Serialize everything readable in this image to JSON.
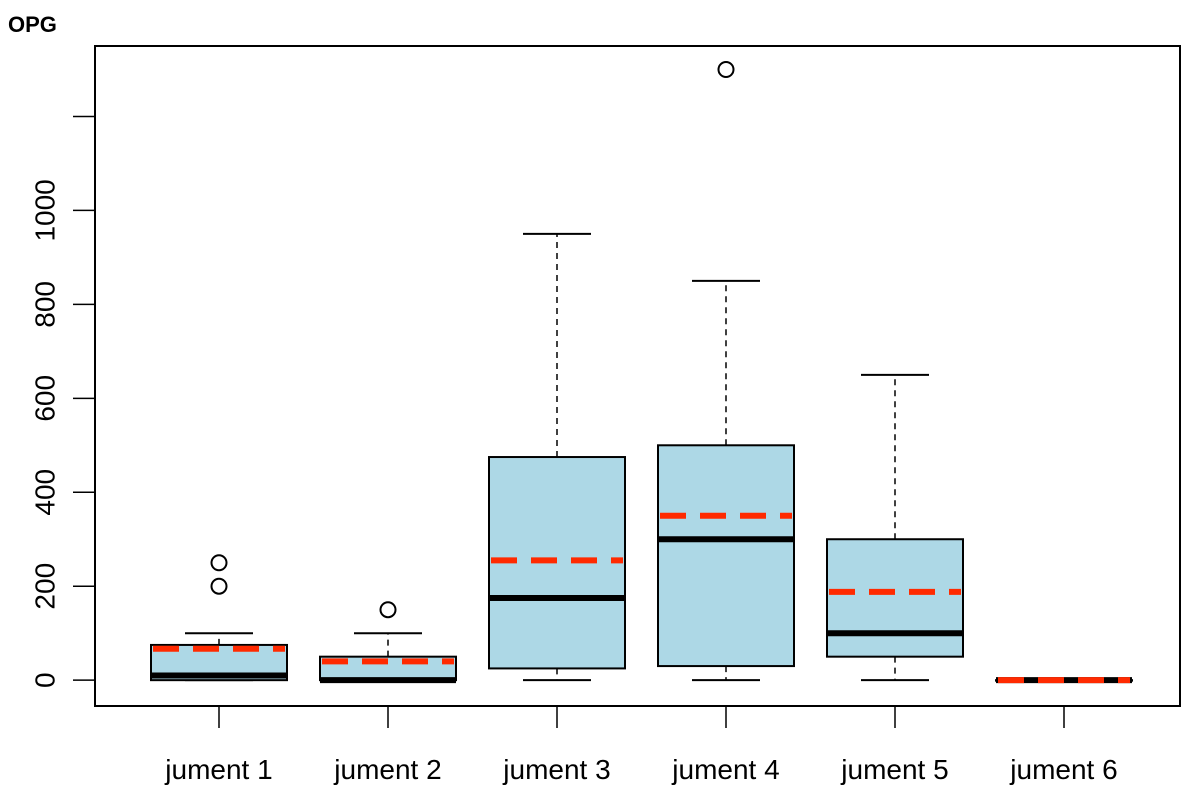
{
  "chart_data": {
    "type": "boxplot",
    "title": "OPG",
    "xlabel": "",
    "ylabel": "",
    "ylim": [
      -55,
      1350
    ],
    "yticks": [
      0,
      200,
      400,
      600,
      800,
      1000,
      1200
    ],
    "ytick_labels": [
      "0",
      "200",
      "400",
      "600",
      "800",
      "1000",
      ""
    ],
    "grid": false,
    "legend": "none",
    "categories": [
      "jument 1",
      "jument 2",
      "jument 3",
      "jument 4",
      "jument 5",
      "jument 6"
    ],
    "boxes": [
      {
        "label": "jument 1",
        "whisker_low": 0,
        "q1": 0,
        "median": 10,
        "q3": 75,
        "whisker_high": 100,
        "mean": 67,
        "outliers": [
          200,
          250
        ]
      },
      {
        "label": "jument 2",
        "whisker_low": 0,
        "q1": 0,
        "median": 0,
        "q3": 50,
        "whisker_high": 100,
        "mean": 40,
        "outliers": [
          150
        ]
      },
      {
        "label": "jument 3",
        "whisker_low": 0,
        "q1": 25,
        "median": 175,
        "q3": 475,
        "whisker_high": 950,
        "mean": 255,
        "outliers": []
      },
      {
        "label": "jument 4",
        "whisker_low": 0,
        "q1": 30,
        "median": 300,
        "q3": 500,
        "whisker_high": 850,
        "mean": 350,
        "outliers": [
          1300
        ]
      },
      {
        "label": "jument 5",
        "whisker_low": 0,
        "q1": 50,
        "median": 100,
        "q3": 300,
        "whisker_high": 650,
        "mean": 188,
        "outliers": []
      },
      {
        "label": "jument 6",
        "whisker_low": 0,
        "q1": 0,
        "median": 0,
        "q3": 0,
        "whisker_high": 0,
        "mean": 0,
        "outliers": []
      }
    ],
    "colors": {
      "box_fill": "#add8e6",
      "box_stroke": "#000000",
      "median": "#000000",
      "mean": "#ff2a00"
    }
  }
}
